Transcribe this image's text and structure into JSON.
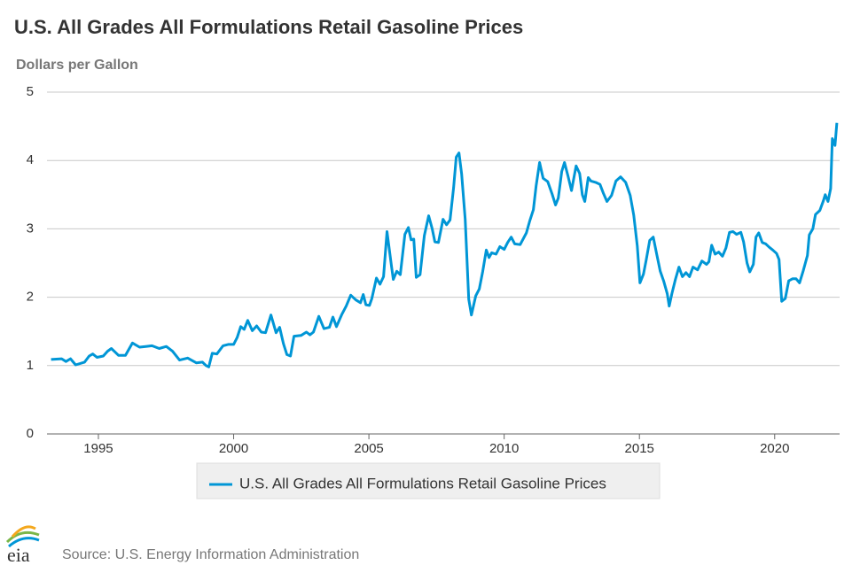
{
  "chart_data": {
    "type": "line",
    "title": "U.S. All Grades All Formulations Retail Gasoline Prices",
    "y_axis_label": "Dollars per Gallon",
    "x": [
      1993.25,
      1993.64,
      1993.8,
      1993.97,
      1994.16,
      1994.49,
      1994.66,
      1994.79,
      1994.95,
      1995.18,
      1995.34,
      1995.48,
      1995.74,
      1996.0,
      1996.26,
      1996.52,
      1996.75,
      1996.98,
      1997.25,
      1997.51,
      1997.74,
      1998.0,
      1998.3,
      1998.62,
      1998.85,
      1998.98,
      1999.08,
      1999.21,
      1999.38,
      1999.61,
      1999.8,
      2000.0,
      2000.13,
      2000.26,
      2000.39,
      2000.52,
      2000.69,
      2000.85,
      2001.02,
      2001.18,
      2001.38,
      2001.57,
      2001.7,
      2001.84,
      2001.97,
      2002.1,
      2002.23,
      2002.49,
      2002.69,
      2002.82,
      2002.95,
      2003.15,
      2003.34,
      2003.54,
      2003.67,
      2003.8,
      2004.0,
      2004.16,
      2004.33,
      2004.52,
      2004.69,
      2004.79,
      2004.89,
      2005.02,
      2005.11,
      2005.28,
      2005.41,
      2005.54,
      2005.67,
      2005.84,
      2005.9,
      2006.03,
      2006.16,
      2006.33,
      2006.46,
      2006.56,
      2006.66,
      2006.75,
      2006.89,
      2007.05,
      2007.21,
      2007.34,
      2007.44,
      2007.57,
      2007.74,
      2007.87,
      2008.0,
      2008.13,
      2008.23,
      2008.33,
      2008.43,
      2008.56,
      2008.69,
      2008.79,
      2008.95,
      2009.08,
      2009.21,
      2009.34,
      2009.44,
      2009.54,
      2009.7,
      2009.84,
      2010.0,
      2010.13,
      2010.26,
      2010.39,
      2010.59,
      2010.82,
      2010.95,
      2011.08,
      2011.18,
      2011.31,
      2011.44,
      2011.61,
      2011.77,
      2011.9,
      2012.0,
      2012.13,
      2012.23,
      2012.36,
      2012.49,
      2012.66,
      2012.79,
      2012.89,
      2012.98,
      2013.11,
      2013.21,
      2013.38,
      2013.54,
      2013.67,
      2013.8,
      2013.97,
      2014.13,
      2014.3,
      2014.49,
      2014.66,
      2014.79,
      2014.92,
      2015.02,
      2015.15,
      2015.25,
      2015.38,
      2015.51,
      2015.64,
      2015.77,
      2015.9,
      2016.03,
      2016.1,
      2016.2,
      2016.33,
      2016.46,
      2016.59,
      2016.72,
      2016.85,
      2016.98,
      2017.15,
      2017.31,
      2017.48,
      2017.57,
      2017.67,
      2017.8,
      2017.93,
      2018.07,
      2018.2,
      2018.33,
      2018.46,
      2018.59,
      2018.75,
      2018.85,
      2018.98,
      2019.08,
      2019.21,
      2019.31,
      2019.41,
      2019.54,
      2019.67,
      2019.8,
      2019.93,
      2020.07,
      2020.16,
      2020.26,
      2020.39,
      2020.52,
      2020.66,
      2020.79,
      2020.92,
      2021.05,
      2021.21,
      2021.28,
      2021.41,
      2021.51,
      2021.67,
      2021.8,
      2021.87,
      2021.97,
      2022.07,
      2022.13,
      2022.23,
      2022.3
    ],
    "series": [
      {
        "name": "U.S. All Grades All Formulations Retail Gasoline Prices",
        "color": "#0096d6",
        "values": [
          1.09,
          1.1,
          1.06,
          1.1,
          1.01,
          1.05,
          1.14,
          1.17,
          1.12,
          1.14,
          1.21,
          1.25,
          1.15,
          1.15,
          1.33,
          1.27,
          1.28,
          1.29,
          1.25,
          1.28,
          1.21,
          1.08,
          1.11,
          1.04,
          1.05,
          1.0,
          0.98,
          1.18,
          1.17,
          1.29,
          1.31,
          1.31,
          1.41,
          1.57,
          1.53,
          1.66,
          1.51,
          1.58,
          1.49,
          1.48,
          1.74,
          1.48,
          1.56,
          1.32,
          1.16,
          1.14,
          1.43,
          1.44,
          1.49,
          1.45,
          1.49,
          1.72,
          1.54,
          1.56,
          1.71,
          1.57,
          1.75,
          1.87,
          2.03,
          1.96,
          1.92,
          2.04,
          1.89,
          1.88,
          1.98,
          2.28,
          2.19,
          2.3,
          2.96,
          2.44,
          2.26,
          2.38,
          2.33,
          2.92,
          3.02,
          2.84,
          2.85,
          2.29,
          2.33,
          2.9,
          3.19,
          3.0,
          2.81,
          2.8,
          3.14,
          3.06,
          3.13,
          3.6,
          4.05,
          4.11,
          3.8,
          3.14,
          1.97,
          1.74,
          2.02,
          2.12,
          2.38,
          2.69,
          2.58,
          2.65,
          2.63,
          2.74,
          2.7,
          2.8,
          2.88,
          2.78,
          2.77,
          2.94,
          3.12,
          3.28,
          3.63,
          3.97,
          3.74,
          3.69,
          3.51,
          3.35,
          3.45,
          3.84,
          3.97,
          3.77,
          3.56,
          3.92,
          3.81,
          3.5,
          3.4,
          3.75,
          3.7,
          3.68,
          3.65,
          3.52,
          3.4,
          3.49,
          3.7,
          3.76,
          3.68,
          3.49,
          3.2,
          2.75,
          2.21,
          2.34,
          2.54,
          2.83,
          2.88,
          2.63,
          2.38,
          2.23,
          2.05,
          1.87,
          2.05,
          2.26,
          2.44,
          2.3,
          2.36,
          2.3,
          2.44,
          2.4,
          2.53,
          2.48,
          2.52,
          2.76,
          2.63,
          2.66,
          2.6,
          2.72,
          2.95,
          2.96,
          2.92,
          2.95,
          2.81,
          2.5,
          2.37,
          2.48,
          2.88,
          2.94,
          2.8,
          2.78,
          2.73,
          2.69,
          2.64,
          2.55,
          1.94,
          1.98,
          2.24,
          2.27,
          2.27,
          2.21,
          2.38,
          2.61,
          2.91,
          3.0,
          3.21,
          3.27,
          3.41,
          3.5,
          3.4,
          3.59,
          4.32,
          4.22,
          4.55
        ]
      }
    ],
    "xlim": [
      1993.1,
      2022.4
    ],
    "ylim": [
      0,
      5
    ],
    "xticks": [
      1995,
      2000,
      2005,
      2010,
      2015,
      2020
    ],
    "yticks": [
      0,
      1,
      2,
      3,
      4,
      5
    ],
    "grid": true
  },
  "source": "Source: U.S. Energy Information Administration",
  "logo": "eia"
}
